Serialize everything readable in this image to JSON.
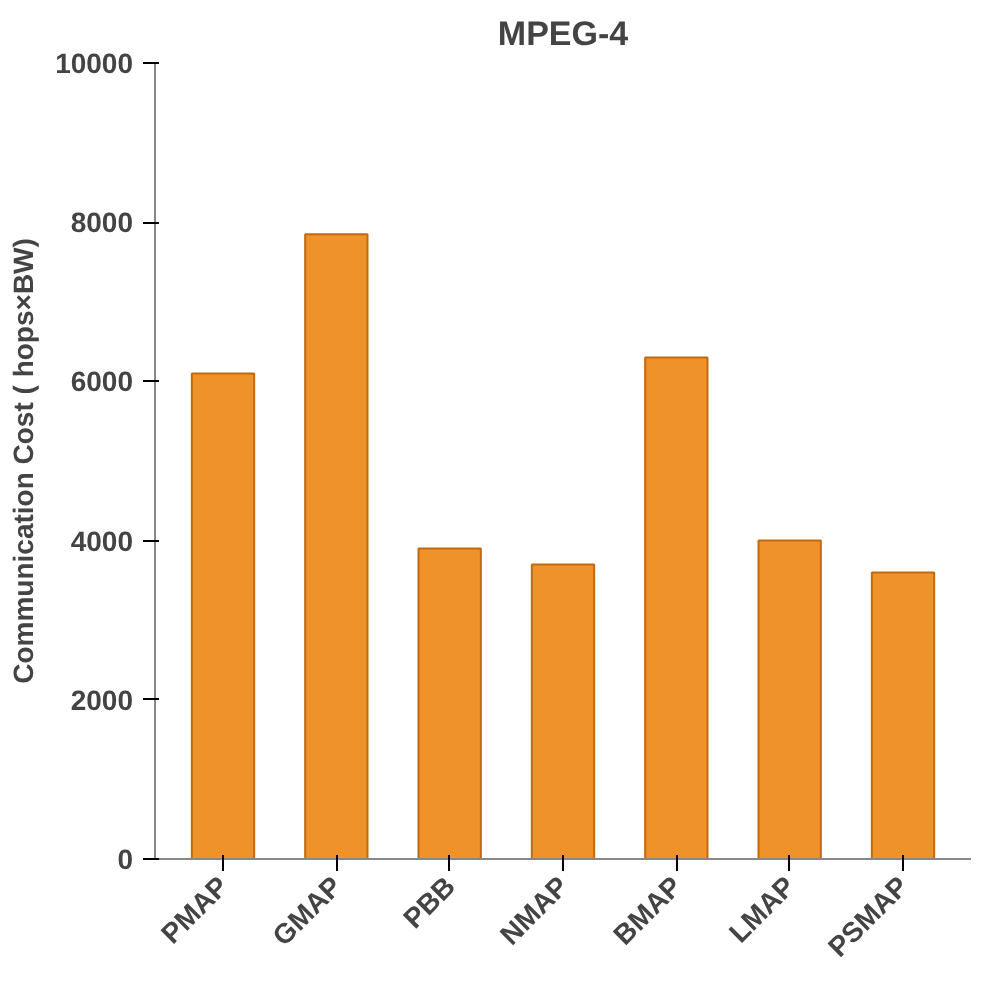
{
  "chart_data": {
    "type": "bar",
    "title": "MPEG-4",
    "ylabel": "Communication Cost ( hops×BW)",
    "categories": [
      "PMAP",
      "GMAP",
      "PBB",
      "NMAP",
      "BMAP",
      "LMAP",
      "PSMAP"
    ],
    "values": [
      6100,
      7850,
      3900,
      3700,
      6300,
      4000,
      3600
    ],
    "color": "#f0922a",
    "ylim": [
      0,
      10000
    ],
    "yticks": [
      0,
      2000,
      4000,
      6000,
      8000,
      10000
    ],
    "grid": false
  }
}
